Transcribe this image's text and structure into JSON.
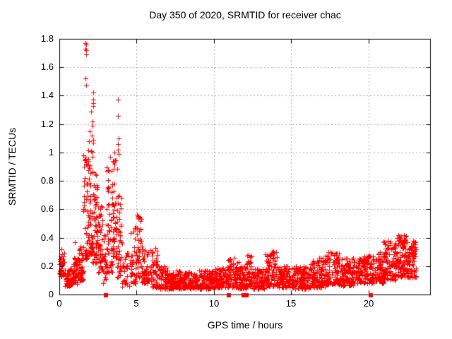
{
  "chart_data": {
    "type": "scatter",
    "title": "Day 350 of 2020, SRMTID for receiver chac",
    "xlabel": "GPS time / hours",
    "ylabel": "SRMTID / TECUs",
    "xlim": [
      0,
      24
    ],
    "ylim": [
      0,
      1.8
    ],
    "xticks": {
      "values": [
        0,
        5,
        10,
        15,
        20
      ],
      "labels": [
        "0",
        "5",
        "10",
        "15",
        "20"
      ]
    },
    "yticks": {
      "values": [
        0,
        0.2,
        0.4,
        0.6,
        0.8,
        1.0,
        1.2,
        1.4,
        1.6,
        1.8
      ],
      "labels": [
        "0",
        "0.2",
        "0.4",
        "0.6",
        "0.8",
        "1",
        "1.2",
        "1.4",
        "1.6",
        "1.8"
      ]
    },
    "grid": {
      "style": "dotted",
      "color": "#b0b0b0",
      "x_at": [
        5,
        10,
        15,
        20
      ],
      "y_at": [
        0.2,
        0.4,
        0.6,
        0.8,
        1.0,
        1.2,
        1.4,
        1.6
      ]
    },
    "legend": "none",
    "marker": {
      "shape": "plus",
      "color": "#ff0000",
      "size": 7
    },
    "gap_markers": {
      "shape": "filled-square",
      "color": "#ff0000",
      "y": 0,
      "size": 6,
      "x": [
        3.0,
        10.97,
        11.95,
        12.12,
        20.15
      ]
    },
    "peak_points": [
      [
        1.7,
        1.77
      ],
      [
        1.73,
        1.76
      ],
      [
        1.71,
        1.73
      ],
      [
        1.74,
        1.72
      ],
      [
        1.72,
        1.69
      ],
      [
        1.69,
        1.52
      ],
      [
        1.75,
        1.47
      ],
      [
        2.18,
        1.42
      ],
      [
        2.19,
        1.37
      ],
      [
        2.2,
        1.35
      ],
      [
        2.21,
        1.33
      ],
      [
        2.05,
        1.29
      ],
      [
        2.16,
        1.22
      ],
      [
        2.17,
        1.19
      ],
      [
        2.08,
        1.12
      ],
      [
        2.19,
        1.09
      ],
      [
        2.21,
        1.07
      ],
      [
        2.04,
        1.01
      ],
      [
        1.95,
        1.15
      ],
      [
        1.92,
        1.08
      ],
      [
        3.78,
        1.37
      ],
      [
        3.8,
        1.26
      ],
      [
        3.82,
        1.1
      ],
      [
        3.79,
        1.06
      ],
      [
        3.81,
        1.02
      ],
      [
        3.83,
        0.99
      ],
      [
        3.55,
        1.0
      ],
      [
        3.3,
        0.97
      ],
      [
        1.0,
        0.37
      ],
      [
        0.12,
        0.32
      ],
      [
        5.02,
        0.56
      ],
      [
        5.3,
        0.53
      ],
      [
        6.2,
        0.33
      ],
      [
        13.8,
        0.31
      ],
      [
        17.55,
        0.3
      ],
      [
        21.95,
        0.42
      ],
      [
        22.05,
        0.4
      ],
      [
        22.4,
        0.39
      ],
      [
        22.9,
        0.38
      ]
    ],
    "density_bands": [
      [
        0.0,
        0.35,
        0.13,
        0.3,
        45,
        1.2
      ],
      [
        0.35,
        0.85,
        0.06,
        0.2,
        60,
        1.3
      ],
      [
        0.85,
        1.25,
        0.07,
        0.26,
        55,
        1.3
      ],
      [
        1.25,
        1.55,
        0.1,
        0.34,
        45,
        1.3
      ],
      [
        1.55,
        1.85,
        0.25,
        1.0,
        50,
        1.5
      ],
      [
        1.85,
        2.15,
        0.28,
        1.05,
        55,
        1.5
      ],
      [
        2.15,
        2.5,
        0.22,
        0.9,
        55,
        1.5
      ],
      [
        2.5,
        2.8,
        0.15,
        0.62,
        45,
        1.4
      ],
      [
        2.8,
        3.05,
        0.08,
        0.45,
        22,
        1.4
      ],
      [
        3.05,
        3.45,
        0.15,
        0.92,
        55,
        1.3
      ],
      [
        3.45,
        3.75,
        0.25,
        0.95,
        50,
        1.3
      ],
      [
        3.75,
        4.05,
        0.1,
        0.7,
        40,
        1.4
      ],
      [
        4.05,
        4.55,
        0.05,
        0.3,
        28,
        1.4
      ],
      [
        4.55,
        4.95,
        0.08,
        0.48,
        35,
        1.3
      ],
      [
        4.95,
        5.35,
        0.12,
        0.56,
        45,
        1.3
      ],
      [
        5.35,
        5.95,
        0.08,
        0.35,
        55,
        1.5
      ],
      [
        5.95,
        6.45,
        0.05,
        0.32,
        55,
        1.5
      ],
      [
        6.45,
        7.0,
        0.04,
        0.2,
        60,
        1.4
      ],
      [
        7.0,
        8.0,
        0.04,
        0.17,
        115,
        1.3
      ],
      [
        8.0,
        9.0,
        0.04,
        0.16,
        115,
        1.3
      ],
      [
        9.0,
        10.0,
        0.04,
        0.17,
        115,
        1.3
      ],
      [
        10.0,
        10.9,
        0.05,
        0.2,
        105,
        1.3
      ],
      [
        10.9,
        11.6,
        0.05,
        0.26,
        80,
        1.4
      ],
      [
        11.6,
        12.1,
        0.04,
        0.2,
        60,
        1.4
      ],
      [
        12.1,
        12.5,
        0.06,
        0.28,
        50,
        1.3
      ],
      [
        12.5,
        13.3,
        0.04,
        0.18,
        90,
        1.3
      ],
      [
        13.3,
        14.2,
        0.06,
        0.3,
        105,
        1.5
      ],
      [
        14.2,
        15.2,
        0.05,
        0.2,
        115,
        1.3
      ],
      [
        15.2,
        16.2,
        0.04,
        0.2,
        115,
        1.3
      ],
      [
        16.2,
        17.2,
        0.05,
        0.26,
        115,
        1.3
      ],
      [
        17.2,
        18.2,
        0.07,
        0.3,
        110,
        1.4
      ],
      [
        18.2,
        19.2,
        0.06,
        0.26,
        115,
        1.3
      ],
      [
        19.2,
        20.2,
        0.08,
        0.28,
        110,
        1.3
      ],
      [
        20.2,
        21.0,
        0.08,
        0.3,
        105,
        1.3
      ],
      [
        21.0,
        21.8,
        0.1,
        0.38,
        105,
        1.2
      ],
      [
        21.8,
        22.5,
        0.12,
        0.42,
        100,
        1.2
      ],
      [
        22.5,
        23.1,
        0.12,
        0.38,
        85,
        1.2
      ]
    ],
    "prng_seed": 1337
  },
  "colors": {
    "background": "#ffffff",
    "marker": "#ff0000",
    "grid": "#b0b0b0",
    "border": "#000000",
    "text": "#000000"
  }
}
